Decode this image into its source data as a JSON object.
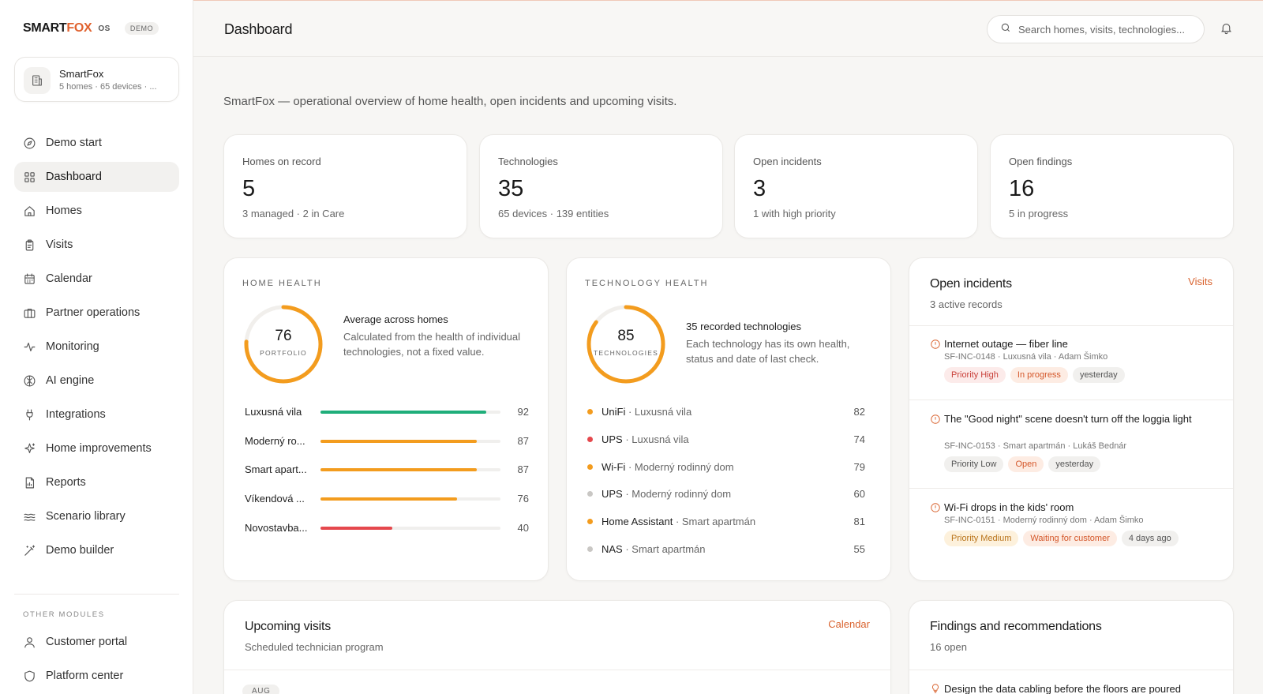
{
  "brand": {
    "name_a": "SMART",
    "name_b": "FOX",
    "os": "OS",
    "badge": "DEMO"
  },
  "org": {
    "name": "SmartFox",
    "sub": "5 homes · 65 devices · ..."
  },
  "nav": [
    {
      "label": "Demo start",
      "icon": "compass-icon"
    },
    {
      "label": "Dashboard",
      "icon": "grid-icon",
      "active": true
    },
    {
      "label": "Homes",
      "icon": "home-icon"
    },
    {
      "label": "Visits",
      "icon": "clipboard-icon"
    },
    {
      "label": "Calendar",
      "icon": "calendar-icon"
    },
    {
      "label": "Partner operations",
      "icon": "briefcase-icon"
    },
    {
      "label": "Monitoring",
      "icon": "activity-icon"
    },
    {
      "label": "AI engine",
      "icon": "brain-icon"
    },
    {
      "label": "Integrations",
      "icon": "plug-icon"
    },
    {
      "label": "Home improvements",
      "icon": "sparkles-icon"
    },
    {
      "label": "Reports",
      "icon": "report-icon"
    },
    {
      "label": "Scenario library",
      "icon": "waves-icon"
    },
    {
      "label": "Demo builder",
      "icon": "wand-icon"
    }
  ],
  "other_modules": {
    "label": "OTHER MODULES",
    "items": [
      {
        "label": "Customer portal",
        "icon": "user-icon"
      },
      {
        "label": "Platform center",
        "icon": "shield-icon"
      }
    ]
  },
  "header": {
    "title": "Dashboard",
    "search_placeholder": "Search homes, visits, technologies..."
  },
  "intro": "SmartFox — operational overview of home health, open incidents and upcoming visits.",
  "stats": [
    {
      "label": "Homes on record",
      "value": "5",
      "sub": "3 managed · 2 in Care"
    },
    {
      "label": "Technologies",
      "value": "35",
      "sub": "65 devices · 139 entities"
    },
    {
      "label": "Open incidents",
      "value": "3",
      "sub": "1 with high priority"
    },
    {
      "label": "Open findings",
      "value": "16",
      "sub": "5 in progress"
    }
  ],
  "home_health": {
    "label": "HOME HEALTH",
    "score": "76",
    "score_label": "PORTFOLIO",
    "score_fraction": 0.76,
    "heading": "Average across homes",
    "desc": "Calculated from the health of individual technologies, not a fixed value.",
    "homes": [
      {
        "name": "Luxusná vila",
        "value": 92,
        "color": "#1fae7a"
      },
      {
        "name": "Moderný ro...",
        "value": 87,
        "color": "#f39c1e"
      },
      {
        "name": "Smart apart...",
        "value": 87,
        "color": "#f39c1e"
      },
      {
        "name": "Víkendová ...",
        "value": 76,
        "color": "#f39c1e"
      },
      {
        "name": "Novostavba...",
        "value": 40,
        "color": "#e5484d"
      }
    ]
  },
  "tech_health": {
    "label": "TECHNOLOGY HEALTH",
    "score": "85",
    "score_label": "TECHNOLOGIES",
    "score_fraction": 0.85,
    "heading": "35 recorded technologies",
    "desc": "Each technology has its own health, status and date of last check.",
    "items": [
      {
        "name": "UniFi",
        "loc": "Luxusná vila",
        "value": "82",
        "color": "#f39c1e"
      },
      {
        "name": "UPS",
        "loc": "Luxusná vila",
        "value": "74",
        "color": "#e5484d"
      },
      {
        "name": "Wi-Fi",
        "loc": "Moderný rodinný dom",
        "value": "79",
        "color": "#f39c1e"
      },
      {
        "name": "UPS",
        "loc": "Moderný rodinný dom",
        "value": "60",
        "color": "#c9c7c4"
      },
      {
        "name": "Home Assistant",
        "loc": "Smart apartmán",
        "value": "81",
        "color": "#f39c1e"
      },
      {
        "name": "NAS",
        "loc": "Smart apartmán",
        "value": "55",
        "color": "#c9c7c4"
      }
    ]
  },
  "incidents": {
    "title": "Open incidents",
    "sub": "3 active records",
    "link": "Visits",
    "items": [
      {
        "title": "Internet outage — fiber line",
        "meta": "SF-INC-0148 · Luxusná vila · Adam Šimko",
        "tags": [
          {
            "text": "Priority High",
            "tone": "red"
          },
          {
            "text": "In progress",
            "tone": "orange"
          },
          {
            "text": "yesterday",
            "tone": "gray"
          }
        ]
      },
      {
        "title": "The \"Good night\" scene doesn't turn off the loggia light",
        "meta": "SF-INC-0153 · Smart apartmán · Lukáš Bednár",
        "tags": [
          {
            "text": "Priority Low",
            "tone": "gray"
          },
          {
            "text": "Open",
            "tone": "orange"
          },
          {
            "text": "yesterday",
            "tone": "gray"
          }
        ]
      },
      {
        "title": "Wi-Fi drops in the kids' room",
        "meta": "SF-INC-0151 · Moderný rodinný dom · Adam Šimko",
        "tags": [
          {
            "text": "Priority Medium",
            "tone": "amber"
          },
          {
            "text": "Waiting for customer",
            "tone": "orange"
          },
          {
            "text": "4 days ago",
            "tone": "gray"
          }
        ]
      }
    ]
  },
  "visits": {
    "title": "Upcoming visits",
    "sub": "Scheduled technician program",
    "link": "Calendar",
    "chip": "AUG"
  },
  "findings": {
    "title": "Findings and recommendations",
    "sub": "16 open",
    "first": "Design the data cabling before the floors are poured"
  }
}
